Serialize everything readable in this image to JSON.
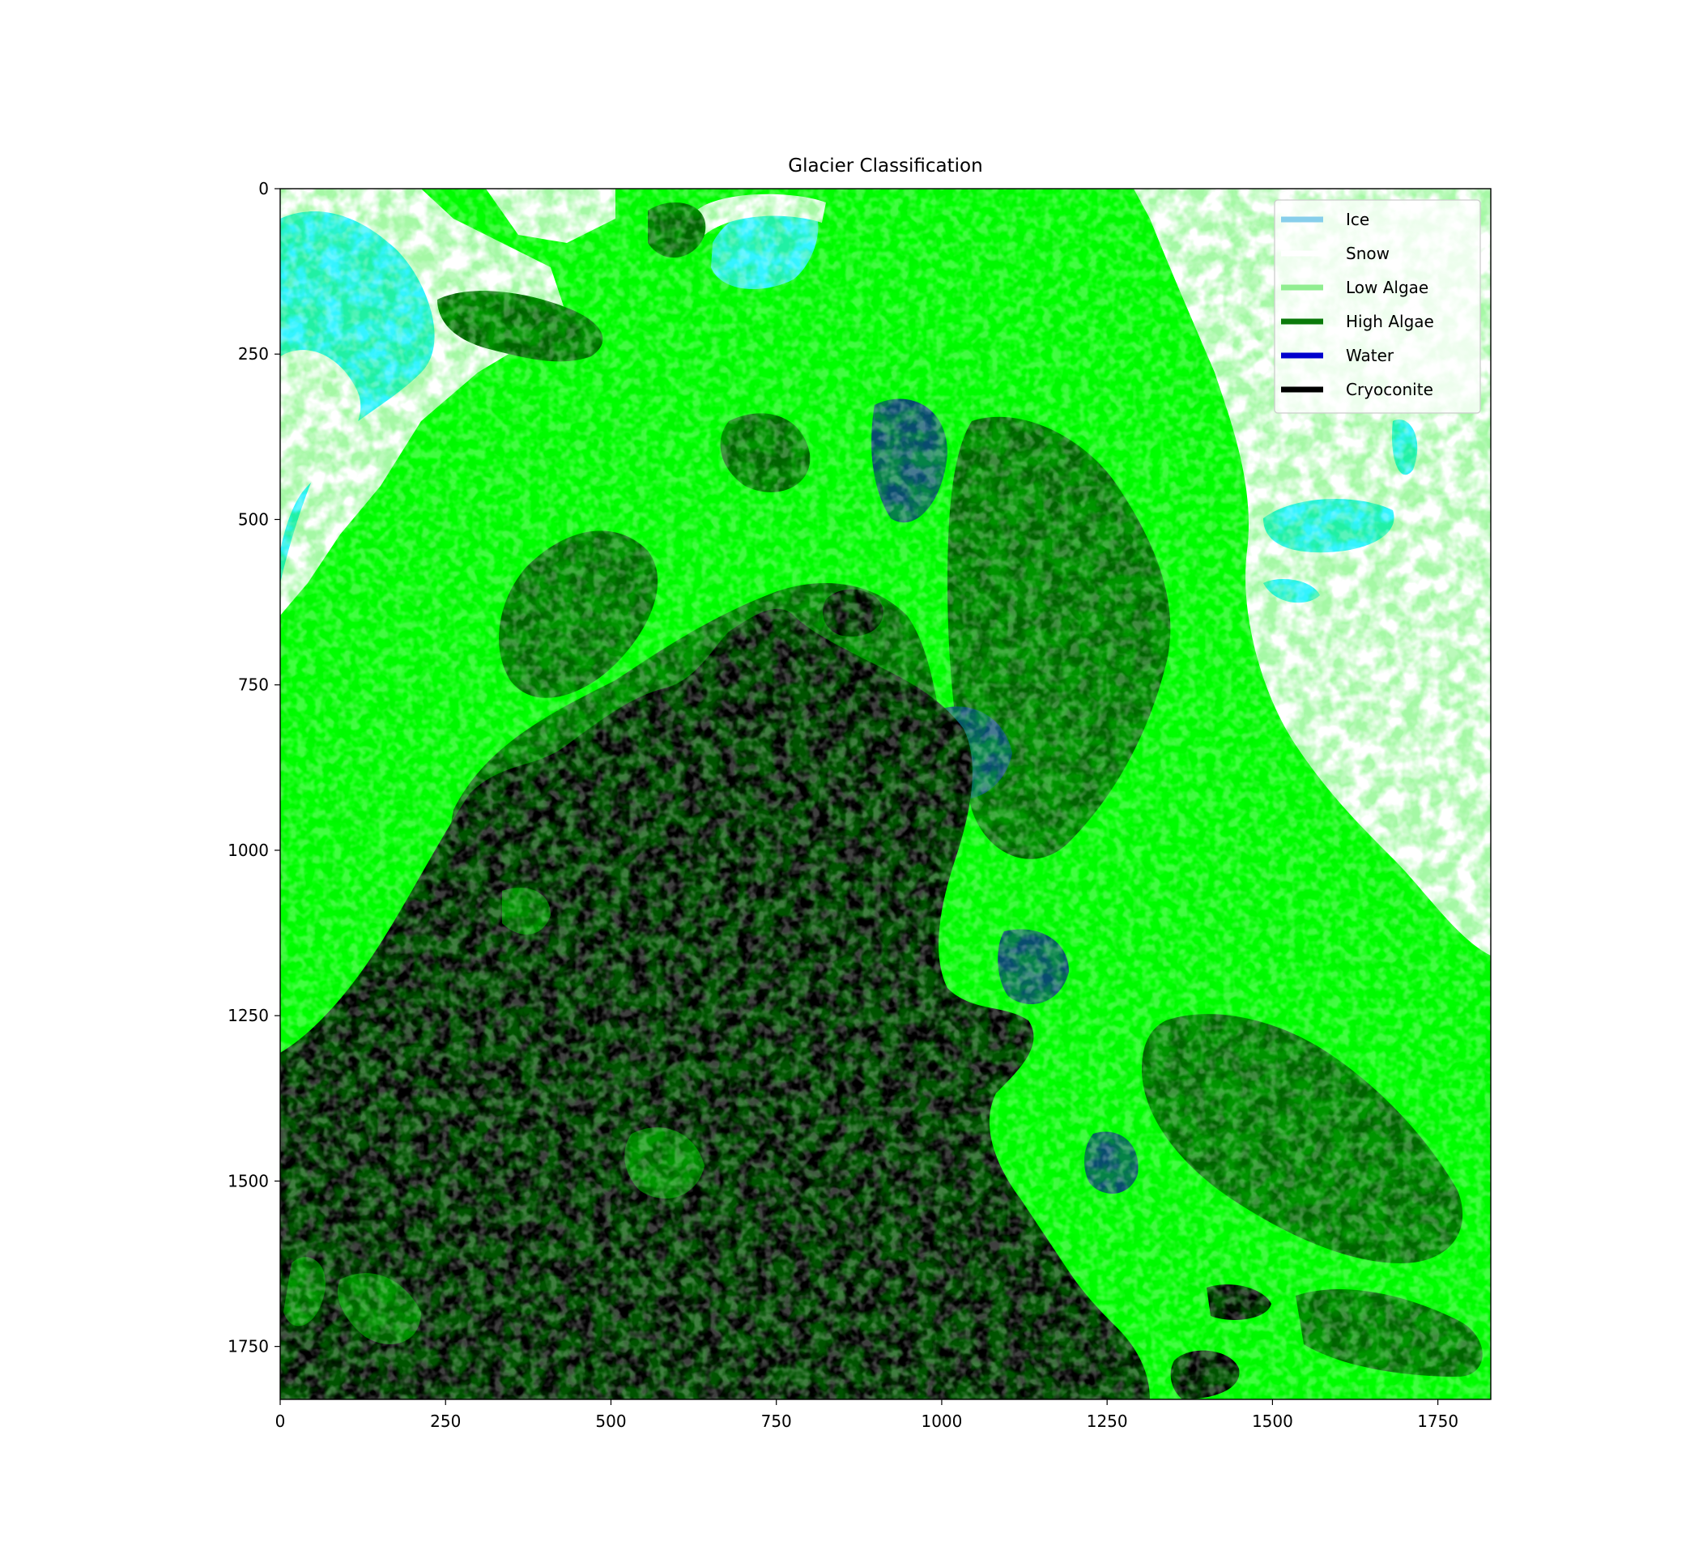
{
  "chart_data": {
    "type": "heatmap",
    "title": "Glacier Classification",
    "xlabel": "",
    "ylabel": "",
    "image_extent": {
      "x": [
        0,
        1830
      ],
      "y": [
        0,
        1830
      ]
    },
    "y_axis_inverted": true,
    "xticks": [
      0,
      250,
      500,
      750,
      1000,
      1250,
      1500,
      1750
    ],
    "yticks": [
      0,
      250,
      500,
      750,
      1000,
      1250,
      1500,
      1750
    ],
    "grid": false,
    "legend_position": "top-right",
    "legend": [
      {
        "label": "Ice",
        "color": "#87ceeb"
      },
      {
        "label": "Snow",
        "color": "#ffffff"
      },
      {
        "label": "Low Algae",
        "color": "#90ee90"
      },
      {
        "label": "High Algae",
        "color": "#0a7a0a"
      },
      {
        "label": "Water",
        "color": "#0000cd"
      },
      {
        "label": "Cryoconite",
        "color": "#000000"
      }
    ],
    "map_colors": {
      "ice": "#33f3ff",
      "snow": "#ffffff",
      "low_algae": "#00ff00",
      "high_algae": "#006400",
      "water": "#084c6e",
      "cryoconite": "#000000"
    }
  }
}
